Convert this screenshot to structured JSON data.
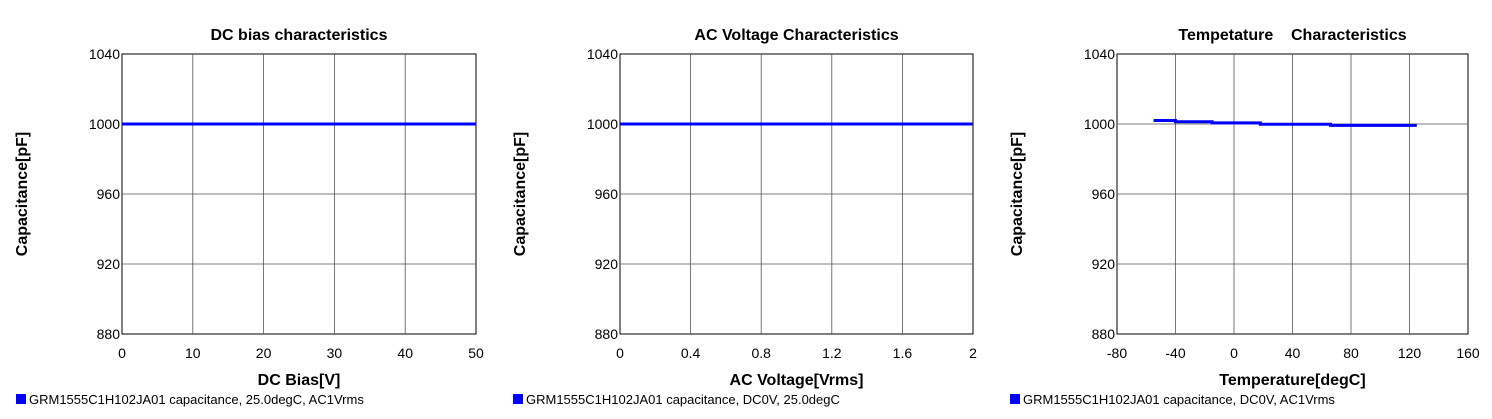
{
  "chart_data": [
    {
      "type": "line",
      "title": "DC bias characteristics",
      "xlabel": "DC Bias[V]",
      "ylabel": "Capacitance[pF]",
      "xlim": [
        0,
        50
      ],
      "ylim": [
        880,
        1040
      ],
      "xticks": [
        0,
        10,
        20,
        30,
        40,
        50
      ],
      "yticks": [
        880,
        920,
        960,
        1000,
        1040
      ],
      "xtick_labels": [
        "0",
        "10",
        "20",
        "30",
        "40",
        "50"
      ],
      "ytick_labels": [
        "880",
        "920",
        "960",
        "1000",
        "1040"
      ],
      "grid": true,
      "legend_position": "bottom-left",
      "series": [
        {
          "name": "GRM1555C1H102JA01 capacitance, 25.0degC, AC1Vrms",
          "color": "#0000ff",
          "x": [
            0,
            50
          ],
          "y": [
            1000,
            1000
          ]
        }
      ]
    },
    {
      "type": "line",
      "title": "AC Voltage Characteristics",
      "xlabel": "AC Voltage[Vrms]",
      "ylabel": "Capacitance[pF]",
      "xlim": [
        0,
        2
      ],
      "ylim": [
        880,
        1040
      ],
      "xticks": [
        0,
        0.4,
        0.8,
        1.2,
        1.6,
        2
      ],
      "yticks": [
        880,
        920,
        960,
        1000,
        1040
      ],
      "xtick_labels": [
        "0",
        "0.4",
        "0.8",
        "1.2",
        "1.6",
        "2"
      ],
      "ytick_labels": [
        "880",
        "920",
        "960",
        "1000",
        "1040"
      ],
      "grid": true,
      "legend_position": "bottom-left",
      "series": [
        {
          "name": "GRM1555C1H102JA01 capacitance, DC0V, 25.0degC",
          "color": "#0000ff",
          "x": [
            0,
            2
          ],
          "y": [
            1000,
            1000
          ]
        }
      ]
    },
    {
      "type": "line",
      "title": "Tempetature    Characteristics",
      "xlabel": "Temperature[degC]",
      "ylabel": "Capacitance[pF]",
      "xlim": [
        -80,
        160
      ],
      "ylim": [
        880,
        1040
      ],
      "xticks": [
        -80,
        -40,
        0,
        40,
        80,
        120,
        160
      ],
      "yticks": [
        880,
        920,
        960,
        1000,
        1040
      ],
      "xtick_labels": [
        "-80",
        "-40",
        "0",
        "40",
        "80",
        "120",
        "160"
      ],
      "ytick_labels": [
        "880",
        "920",
        "960",
        "1000",
        "1040"
      ],
      "grid": true,
      "legend_position": "bottom-left",
      "series": [
        {
          "name": "GRM1555C1H102JA01 capacitance, DC0V, AC1Vrms",
          "color": "#0000ff",
          "x": [
            -55,
            -40,
            -40,
            -15,
            -15,
            18,
            18,
            66,
            66,
            125
          ],
          "y": [
            1002,
            1002,
            1001.3,
            1001.3,
            1000.6,
            1000.6,
            999.9,
            999.9,
            999.2,
            999.2
          ]
        }
      ]
    }
  ]
}
